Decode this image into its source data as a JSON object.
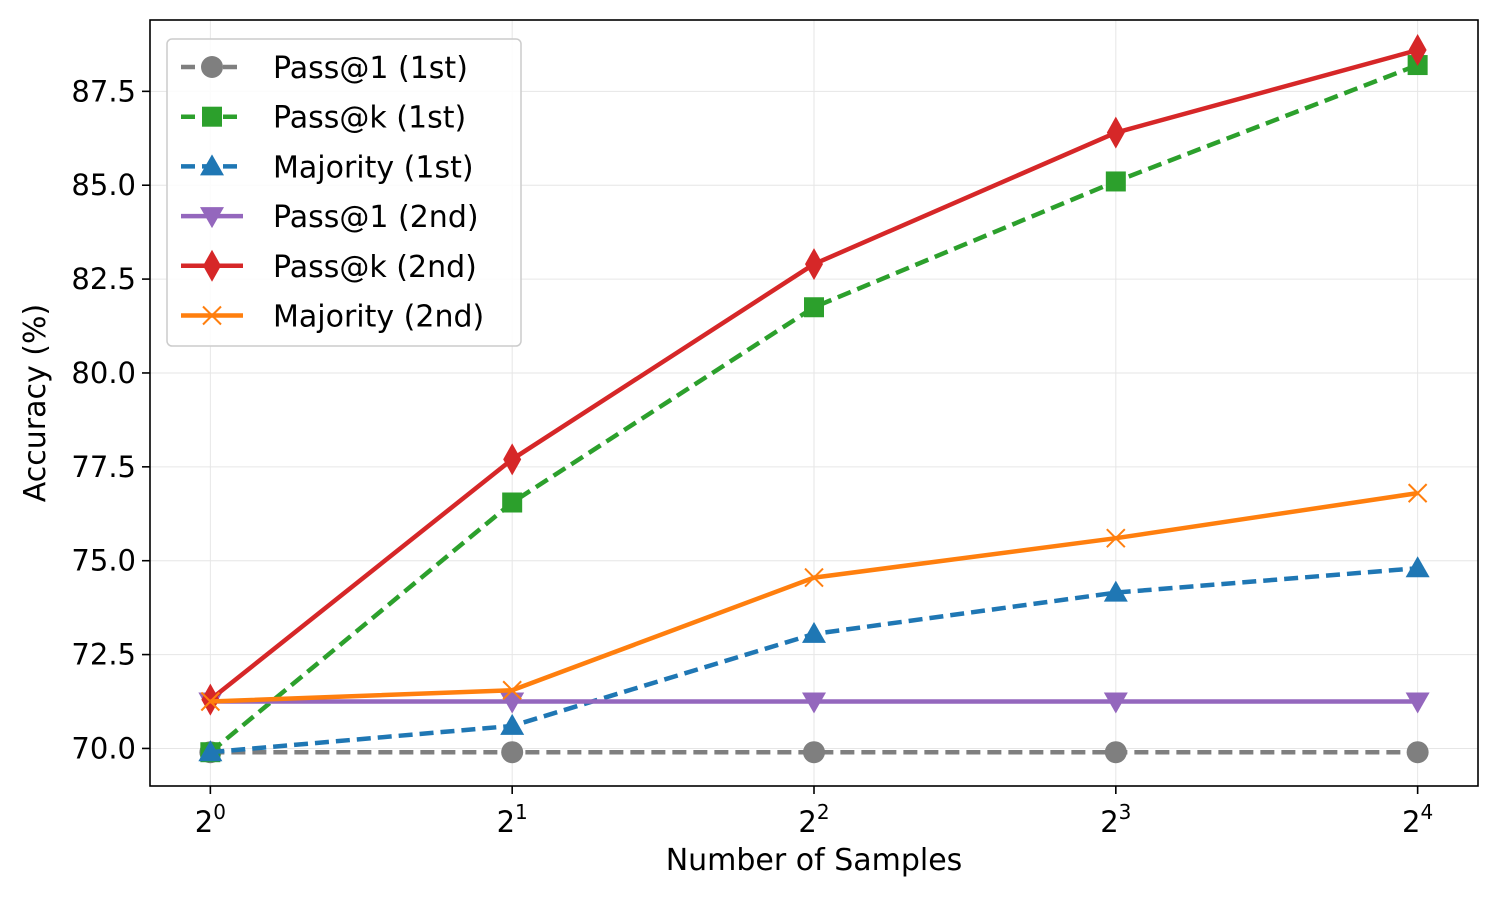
{
  "chart_data": {
    "type": "line",
    "title": "",
    "xlabel": "Number of Samples",
    "ylabel": "Accuracy (%)",
    "x": [
      0,
      1,
      2,
      3,
      4
    ],
    "xtick_labels": [
      {
        "base": "2",
        "exp": "0"
      },
      {
        "base": "2",
        "exp": "1"
      },
      {
        "base": "2",
        "exp": "2"
      },
      {
        "base": "2",
        "exp": "3"
      },
      {
        "base": "2",
        "exp": "4"
      }
    ],
    "yticks": [
      70.0,
      72.5,
      75.0,
      77.5,
      80.0,
      82.5,
      85.0,
      87.5
    ],
    "ytick_labels": [
      "70.0",
      "72.5",
      "75.0",
      "77.5",
      "80.0",
      "82.5",
      "85.0",
      "87.5"
    ],
    "ylim": [
      69.0,
      89.4
    ],
    "xlim": [
      -0.2,
      4.2
    ],
    "grid": true,
    "legend_position": "top-left",
    "series": [
      {
        "name": "Pass@1 (1st)",
        "color": "#7f7f7f",
        "dash": "dashed",
        "marker": "circle",
        "values": [
          69.9,
          69.9,
          69.9,
          69.9,
          69.9
        ]
      },
      {
        "name": "Pass@k (1st)",
        "color": "#2ca02c",
        "dash": "dashed",
        "marker": "square",
        "values": [
          69.9,
          76.55,
          81.75,
          85.1,
          88.2
        ]
      },
      {
        "name": "Majority (1st)",
        "color": "#1f77b4",
        "dash": "dashed",
        "marker": "triangle-up",
        "values": [
          69.9,
          70.6,
          73.05,
          74.15,
          74.8
        ]
      },
      {
        "name": "Pass@1 (2nd)",
        "color": "#9467bd",
        "dash": "solid",
        "marker": "triangle-down",
        "values": [
          71.25,
          71.25,
          71.25,
          71.25,
          71.25
        ]
      },
      {
        "name": "Pass@k (2nd)",
        "color": "#d62728",
        "dash": "solid",
        "marker": "diamond",
        "values": [
          71.3,
          77.7,
          82.9,
          86.4,
          88.6
        ]
      },
      {
        "name": "Majority (2nd)",
        "color": "#ff7f0e",
        "dash": "solid",
        "marker": "x",
        "values": [
          71.25,
          71.55,
          74.55,
          75.6,
          76.8
        ]
      }
    ]
  }
}
